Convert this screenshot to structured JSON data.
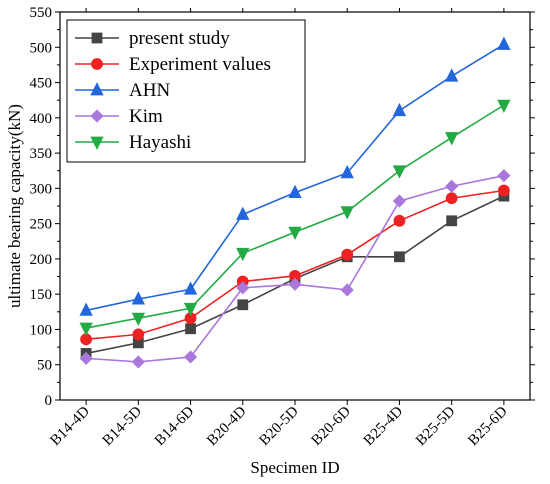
{
  "chart_data": {
    "type": "line",
    "title": "",
    "xlabel": "Specimen ID",
    "ylabel": "ultimate bearing capacity(kN)",
    "categories": [
      "B14-4D",
      "B14-5D",
      "B14-6D",
      "B20-4D",
      "B20-5D",
      "B20-6D",
      "B25-4D",
      "B25-5D",
      "B25-6D"
    ],
    "ylim": [
      0,
      550
    ],
    "yticks": [
      0,
      50,
      100,
      150,
      200,
      250,
      300,
      350,
      400,
      450,
      500,
      550
    ],
    "grid": false,
    "legend_position": "top-left",
    "series": [
      {
        "name": "present study",
        "color": "#444444",
        "marker": "square",
        "values": [
          66,
          81,
          101,
          135,
          172,
          203,
          203,
          254,
          289
        ]
      },
      {
        "name": "Experiment values",
        "color": "#ee2222",
        "marker": "circle",
        "values": [
          86,
          93,
          116,
          168,
          176,
          206,
          254,
          286,
          297
        ]
      },
      {
        "name": "AHN",
        "color": "#2266dd",
        "marker": "triangle-up",
        "values": [
          127,
          143,
          157,
          263,
          294,
          322,
          410,
          459,
          504
        ]
      },
      {
        "name": "Kim",
        "color": "#aa77dd",
        "marker": "diamond",
        "values": [
          59,
          54,
          61,
          159,
          164,
          156,
          282,
          303,
          318
        ]
      },
      {
        "name": "Hayashi",
        "color": "#22aa44",
        "marker": "triangle-down",
        "values": [
          102,
          116,
          130,
          208,
          238,
          267,
          325,
          372,
          418
        ]
      }
    ]
  }
}
